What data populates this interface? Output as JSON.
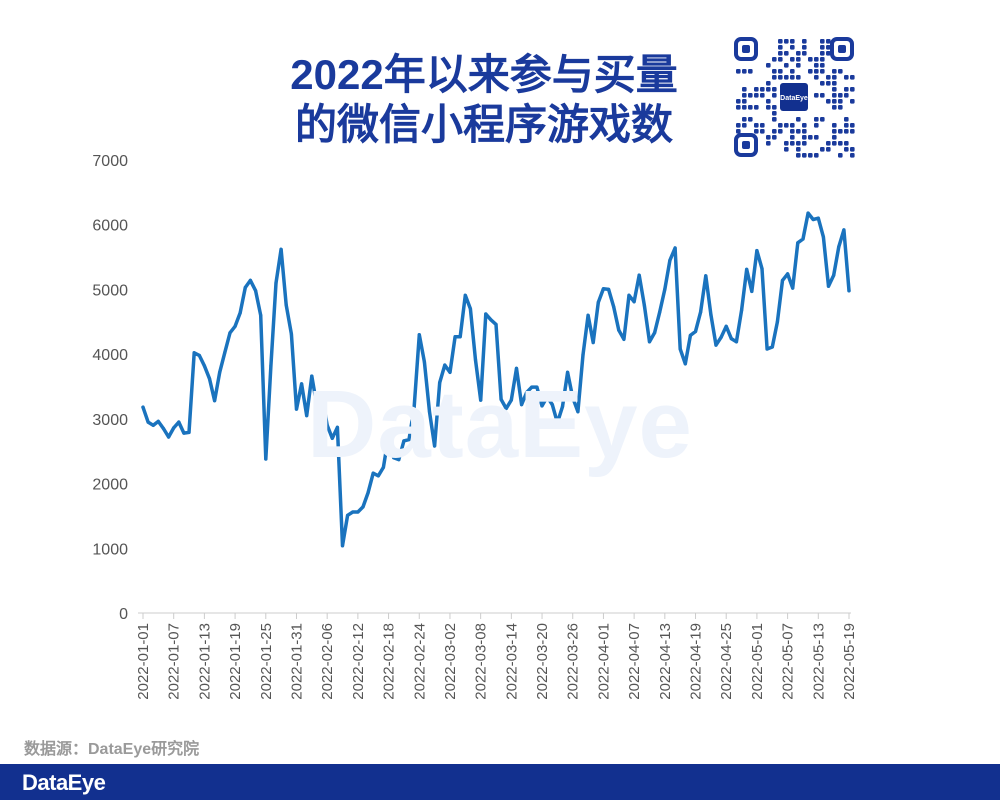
{
  "header": {
    "title_line1": "2022年以来参与买量",
    "title_line2": "的微信小程序游戏数",
    "qr_logo_text": "DataEye"
  },
  "watermark": "DataEye",
  "source_text": "数据源：DataEye研究院",
  "footer": {
    "logo_text": "DataEye",
    "bar_color": "#12308f"
  },
  "colors": {
    "line": "#1a73be",
    "title": "#1a3a9c"
  },
  "chart_data": {
    "type": "line",
    "title": "2022年以来参与买量的微信小程序游戏数",
    "xlabel": "",
    "ylabel": "",
    "ylim": [
      0,
      7000
    ],
    "yticks": [
      0,
      1000,
      2000,
      3000,
      4000,
      5000,
      6000,
      7000
    ],
    "grid": false,
    "x_start": "2022-01-01",
    "x_tick_labels": [
      "2022-01-01",
      "2022-01-07",
      "2022-01-13",
      "2022-01-19",
      "2022-01-25",
      "2022-01-31",
      "2022-02-06",
      "2022-02-12",
      "2022-02-18",
      "2022-02-24",
      "2022-03-02",
      "2022-03-08",
      "2022-03-14",
      "2022-03-20",
      "2022-03-26",
      "2022-04-01",
      "2022-04-07",
      "2022-04-13",
      "2022-04-19",
      "2022-04-25",
      "2022-05-01",
      "2022-05-07",
      "2022-05-13",
      "2022-05-19"
    ],
    "series": [
      {
        "values": [
          3180,
          2950,
          2900,
          2960,
          2850,
          2720,
          2860,
          2950,
          2780,
          2790,
          4020,
          3980,
          3820,
          3620,
          3280,
          3720,
          4030,
          4330,
          4430,
          4640,
          5030,
          5140,
          4980,
          4600,
          2380,
          3820,
          5100,
          5620,
          4760,
          4310,
          3150,
          3540,
          3050,
          3660,
          3200,
          3350,
          2900,
          2700,
          2870,
          1040,
          1510,
          1560,
          1560,
          1640,
          1860,
          2160,
          2120,
          2250,
          2740,
          2400,
          2370,
          2660,
          2680,
          3170,
          4300,
          3880,
          3110,
          2580,
          3560,
          3830,
          3720,
          4270,
          4270,
          4910,
          4700,
          3910,
          3290,
          4620,
          4530,
          4460,
          3300,
          3160,
          3290,
          3780,
          3220,
          3410,
          3490,
          3490,
          3200,
          3340,
          3220,
          2940,
          3190,
          3720,
          3330,
          3110,
          3990,
          4600,
          4180,
          4800,
          5010,
          5000,
          4730,
          4370,
          4230,
          4910,
          4810,
          5220,
          4750,
          4190,
          4330,
          4650,
          5000,
          5450,
          5640,
          4080,
          3850,
          4290,
          4350,
          4650,
          5210,
          4610,
          4140,
          4260,
          4430,
          4240,
          4190,
          4680,
          5310,
          4970,
          5600,
          5320,
          4080,
          4110,
          4500,
          5140,
          5240,
          5020,
          5720,
          5780,
          6180,
          6080,
          6100,
          5810,
          5050,
          5220,
          5660,
          5920,
          4980
        ]
      }
    ]
  }
}
